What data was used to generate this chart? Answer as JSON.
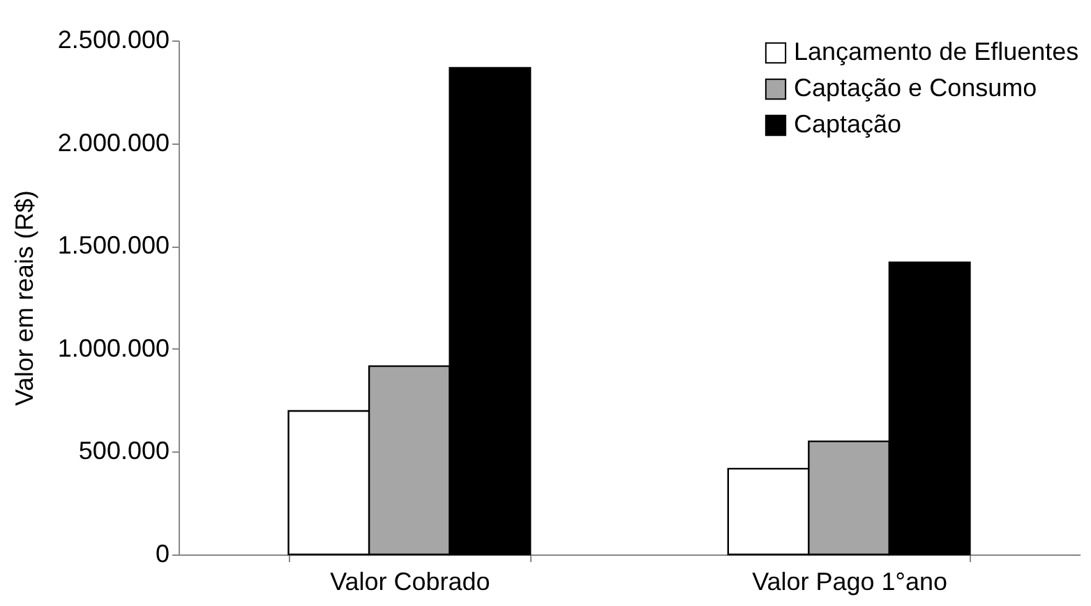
{
  "chart_data": {
    "type": "bar",
    "ylabel": "Valor em reais (R$)",
    "categories": [
      "Valor Cobrado",
      "Valor Pago 1°ano"
    ],
    "series": [
      {
        "name": "Lançamento de Efluentes",
        "color": "#ffffff",
        "values": [
          698000,
          417000
        ]
      },
      {
        "name": "Captação e Consumo",
        "color": "#a6a6a6",
        "values": [
          916000,
          550000
        ]
      },
      {
        "name": "Captação",
        "color": "#000000",
        "values": [
          2366000,
          1420000
        ]
      }
    ],
    "ylim": [
      0,
      2500000
    ],
    "yticks": [
      {
        "value": 0,
        "label": "0"
      },
      {
        "value": 500000,
        "label": "500.000"
      },
      {
        "value": 1000000,
        "label": "1.000.000"
      },
      {
        "value": 1500000,
        "label": "1.500.000"
      },
      {
        "value": 2000000,
        "label": "2.000.000"
      },
      {
        "value": 2500000,
        "label": "2.500.000"
      }
    ],
    "grid": false,
    "legend": "top right"
  }
}
